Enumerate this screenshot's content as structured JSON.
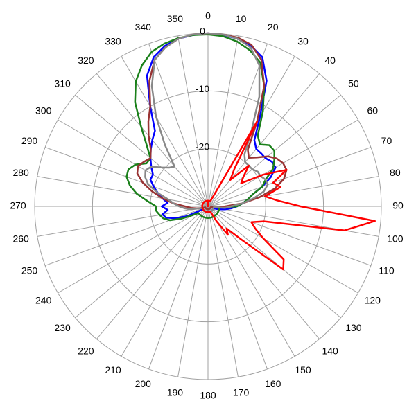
{
  "chart_data": {
    "type": "polar",
    "rlim": [
      -30,
      0
    ],
    "rticks": [
      -20,
      -10,
      0
    ],
    "thetaticks": [
      0,
      10,
      20,
      30,
      40,
      50,
      60,
      70,
      80,
      90,
      100,
      110,
      120,
      130,
      140,
      150,
      160,
      170,
      180,
      190,
      200,
      210,
      220,
      230,
      240,
      250,
      260,
      270,
      280,
      290,
      300,
      310,
      320,
      330,
      340,
      350
    ],
    "theta": [
      0,
      5,
      10,
      15,
      20,
      25,
      30,
      35,
      40,
      45,
      50,
      55,
      60,
      65,
      70,
      75,
      80,
      85,
      90,
      95,
      100,
      105,
      110,
      115,
      120,
      125,
      130,
      135,
      140,
      145,
      150,
      155,
      160,
      165,
      170,
      175,
      180,
      185,
      190,
      195,
      200,
      205,
      210,
      215,
      220,
      225,
      230,
      235,
      240,
      245,
      250,
      255,
      260,
      265,
      270,
      275,
      280,
      285,
      290,
      295,
      300,
      305,
      310,
      315,
      320,
      325,
      330,
      335,
      340,
      345,
      350,
      355
    ],
    "grid": true,
    "series": [
      {
        "color": "#0000ff",
        "values": [
          0,
          -0.2,
          -0.5,
          -1.2,
          -2.5,
          -6,
          -12,
          -16,
          -17,
          -17,
          -17,
          -16.5,
          -16.5,
          -18,
          -20,
          -22,
          -23,
          -24,
          -25,
          -26,
          -27,
          -28,
          -29,
          -29,
          -29,
          -29,
          -29,
          -29,
          -29,
          -29,
          -29,
          -29,
          -29,
          -29,
          -29,
          -29,
          -29,
          -29,
          -29,
          -29,
          -29,
          -29,
          -29,
          -29,
          -29,
          -29,
          -29,
          -29,
          -29,
          -26,
          -24,
          -22.5,
          -22,
          -23,
          -22,
          -23,
          -22,
          -21,
          -20,
          -19,
          -19,
          -18,
          -17,
          -16,
          -15,
          -14,
          -10,
          -5,
          -2.5,
          -1.2,
          -0.5,
          -0.2
        ]
      },
      {
        "color": "#1a801a",
        "values": [
          -0.2,
          -0.4,
          -1,
          -2,
          -3.5,
          -7,
          -11,
          -15,
          -16,
          -15,
          -15,
          -16,
          -17,
          -19,
          -20,
          -22,
          -23,
          -24,
          -25,
          -28,
          -28,
          -28,
          -28,
          -28,
          -28,
          -28,
          -28,
          -28,
          -28,
          -28,
          -28,
          -28,
          -28,
          -28,
          -28,
          -28,
          -28,
          -28,
          -28,
          -28,
          -28,
          -28,
          -28,
          -28,
          -28,
          -28,
          -28,
          -28,
          -27,
          -25,
          -23,
          -22,
          -21.5,
          -21,
          -21,
          -19.5,
          -17.5,
          -16,
          -15,
          -14.8,
          -15.5,
          -17,
          -17,
          -15,
          -12,
          -8,
          -5,
          -3,
          -1.5,
          -0.8,
          -0.4,
          -0.2
        ]
      },
      {
        "color": "#993333",
        "values": [
          0,
          -0.1,
          -0.3,
          -1,
          -3,
          -7,
          -13,
          -18,
          -19,
          -18,
          -16.5,
          -15.5,
          -15,
          -15,
          -16,
          -18,
          -21,
          -24,
          -27,
          -28,
          -29,
          -29.5,
          -29.5,
          -29.5,
          -29.5,
          -29.5,
          -29.5,
          -29.5,
          -29.5,
          -29.5,
          -29.5,
          -29.5,
          -29.5,
          -29.5,
          -29.5,
          -29.5,
          -29.5,
          -29.5,
          -29.5,
          -29.5,
          -29.5,
          -29.5,
          -29.5,
          -29.5,
          -29.5,
          -29.5,
          -29.5,
          -29.5,
          -29.5,
          -29.5,
          -29.5,
          -29,
          -28,
          -27,
          -26,
          -24,
          -22,
          -20,
          -18,
          -16.5,
          -16,
          -16.5,
          -17,
          -16,
          -14,
          -12,
          -10,
          -6,
          -3,
          -1.5,
          -0.5,
          -0.1
        ]
      },
      {
        "color": "#888888",
        "values": [
          0,
          -0.1,
          -0.5,
          -1.5,
          -4,
          -9,
          -15,
          -19,
          -20,
          -20,
          -20,
          -19.5,
          -19.5,
          -19,
          -19,
          -20,
          -22,
          -24,
          -26,
          -27,
          -29,
          -29,
          -29,
          -29,
          -29,
          -29,
          -29,
          -29,
          -29,
          -29,
          -29,
          -29,
          -29,
          -29,
          -29,
          -29,
          -29,
          -29,
          -29,
          -29,
          -29,
          -29,
          -29,
          -29,
          -29,
          -29,
          -29,
          -29,
          -29,
          -29,
          -29,
          -29,
          -27,
          -26,
          -25,
          -24,
          -23,
          -21,
          -19,
          -18,
          -17.5,
          -18,
          -19.5,
          -20.5,
          -21,
          -17,
          -12,
          -7,
          -3,
          -1.5,
          -0.5,
          -0.1
        ]
      },
      {
        "color": "#ff0000",
        "values": [
          -30,
          -29,
          -29,
          -29,
          -29,
          -29,
          -13,
          -22,
          -24,
          -20,
          -22,
          -23,
          -19,
          -15,
          -18,
          -17,
          -20,
          -18,
          -14,
          -1,
          -6,
          -20,
          -22,
          -21,
          -19,
          -14,
          -13,
          -22,
          -25,
          -24,
          -27,
          -29,
          -29,
          -29,
          -29,
          -29,
          -29,
          -29,
          -29,
          -29,
          -29,
          -29,
          -29,
          -29,
          -29,
          -29,
          -29,
          -29,
          -29,
          -29,
          -29,
          -29,
          -29,
          -29,
          -29,
          -29,
          -29,
          -29,
          -29,
          -29,
          -29,
          -29,
          -29,
          -29,
          -29,
          -29,
          -29,
          -29,
          -29,
          -29,
          -29,
          -29
        ]
      }
    ]
  }
}
